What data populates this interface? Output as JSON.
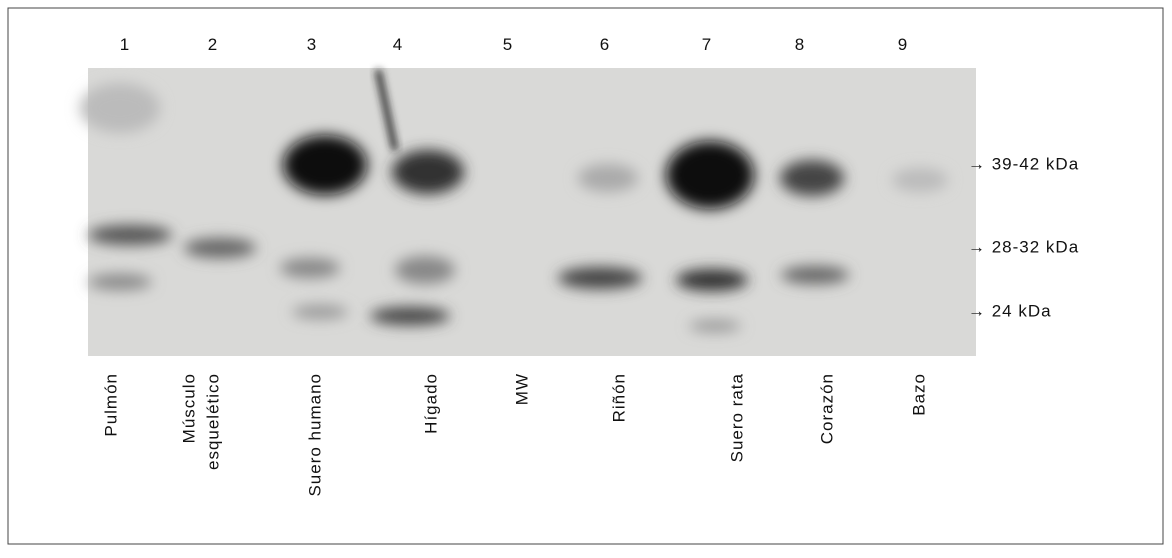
{
  "lanes": [
    {
      "number": "1",
      "label": [
        "Pulmón"
      ]
    },
    {
      "number": "2",
      "label": [
        "Músculo",
        "esquelético"
      ]
    },
    {
      "number": "3",
      "label": [
        "Suero humano"
      ]
    },
    {
      "number": "4",
      "label": [
        "Hígado"
      ]
    },
    {
      "number": "5",
      "label": [
        "MW"
      ]
    },
    {
      "number": "6",
      "label": [
        "Riñón"
      ]
    },
    {
      "number": "7",
      "label": [
        "Suero rata"
      ]
    },
    {
      "number": "8",
      "label": [
        "Corazón"
      ]
    },
    {
      "number": "9",
      "label": [
        "Bazo"
      ]
    }
  ],
  "markers": [
    "→ 39-42 kDa",
    "→ 28-32 kDa",
    "→ 24 kDa"
  ]
}
